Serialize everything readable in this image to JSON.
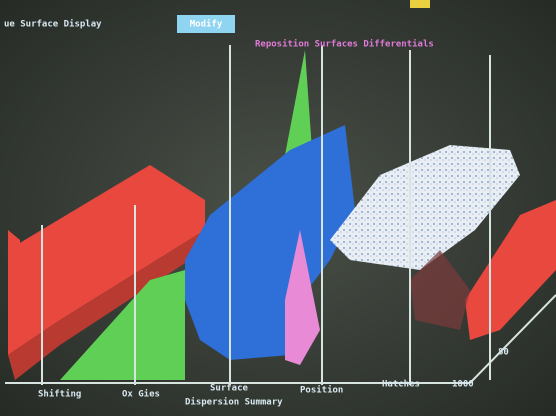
{
  "header": {
    "title": "ue Surface Display",
    "button": "Modify",
    "subtitle": "Reposition Surfaces Differentials"
  },
  "axis_labels": [
    "Shifting",
    "Ox Gies",
    "Surface",
    "Dispersion Summary",
    "Position",
    "Hatches",
    "1000",
    "80"
  ]
}
